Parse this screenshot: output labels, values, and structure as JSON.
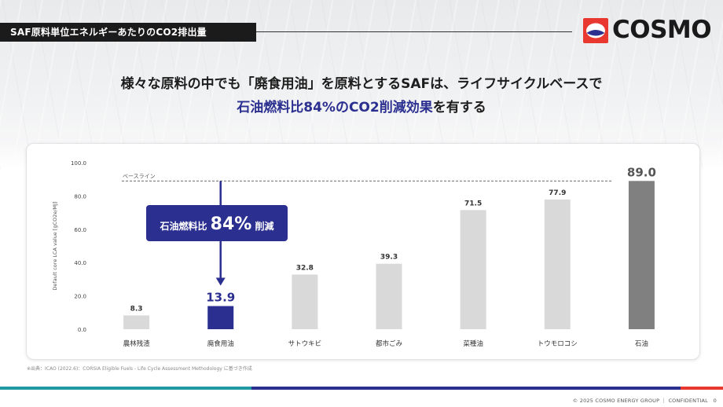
{
  "header": {
    "section_title": "SAF原料単位エネルギーあたりのCO2排出量"
  },
  "logo": {
    "brand": "COSMO",
    "colors": {
      "red": "#e8382f",
      "navy": "#2b2f8f",
      "white": "#ffffff"
    },
    "icon": "cosmo-emblem"
  },
  "headline": {
    "line1": "様々な原料の中でも「廃食用油」を原料とするSAFは、ライフサイクルベースで",
    "line2_highlight": "石油燃料比84%のCO2削減効果",
    "line2_rest": "を有する"
  },
  "chart_data": {
    "type": "bar",
    "ylabel": "Default core LCA value [gCO2e/MJ]",
    "xlabel": "",
    "ylim": [
      0,
      100
    ],
    "yticks": [
      "0.0",
      "20.0",
      "40.0",
      "60.0",
      "80.0",
      "100.0"
    ],
    "categories": [
      "農林残渣",
      "廃食用油",
      "サトウキビ",
      "都市ごみ",
      "菜種油",
      "トウモロコシ",
      "石油"
    ],
    "values": [
      8.3,
      13.9,
      32.8,
      39.3,
      71.5,
      77.9,
      89.0
    ],
    "value_labels": [
      "8.3",
      "13.9",
      "32.8",
      "39.3",
      "71.5",
      "77.9",
      "89.0"
    ],
    "bar_colors": [
      "#d9d9d9",
      "#2b2f8f",
      "#d9d9d9",
      "#d9d9d9",
      "#d9d9d9",
      "#d9d9d9",
      "#808080"
    ],
    "baseline": {
      "label": "ベースライン",
      "value": 89.0
    },
    "callout": {
      "prefix": "石油燃料比",
      "value": "84%",
      "suffix": "削減",
      "color": "#2b2f8f"
    },
    "grid": false
  },
  "footer": {
    "source_note": "※出典：ICAO (2022.6)：CORSIA Eligible Fuels - Life Cycle Assessment Methodology に基づき作成",
    "copyright": "© 2025 COSMO ENERGY GROUP ｜ CONFIDENTIAL　0"
  }
}
